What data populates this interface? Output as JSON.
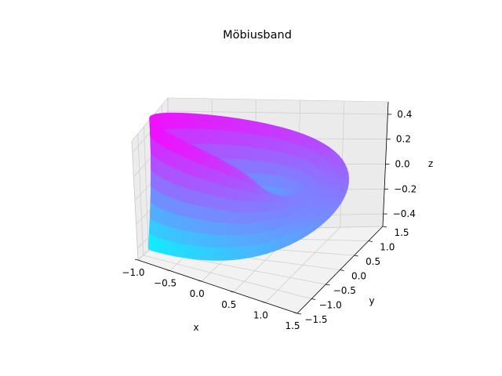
{
  "chart_data": {
    "type": "surface3d",
    "title": "Möbiusband",
    "xlabel": "x",
    "ylabel": "y",
    "zlabel": "z",
    "colormap": "cool",
    "colormap_colors": [
      "#00ffff",
      "#ff00ff"
    ],
    "xlim": [
      -1.0,
      1.5
    ],
    "ylim": [
      -1.5,
      1.5
    ],
    "zlim": [
      -0.5,
      0.5
    ],
    "x_ticks": [
      "−1.0",
      "−0.5",
      "0.0",
      "0.5",
      "1.0",
      "1.5"
    ],
    "y_ticks": [
      "−1.5",
      "−1.0",
      "−0.5",
      "0.0",
      "0.5",
      "1.0",
      "1.5"
    ],
    "z_ticks": [
      "−0.4",
      "−0.2",
      "0.0",
      "0.2",
      "0.4"
    ],
    "grid": true,
    "pane_color": "#f2f2f2",
    "surface": {
      "u_range": [
        0,
        6.283
      ],
      "v_range": [
        -0.5,
        0.5
      ],
      "equation": "x=(1+v·cos(u/2))·cos(u), y=(1+v·cos(u/2))·sin(u), z=v·sin(u/2)"
    }
  }
}
